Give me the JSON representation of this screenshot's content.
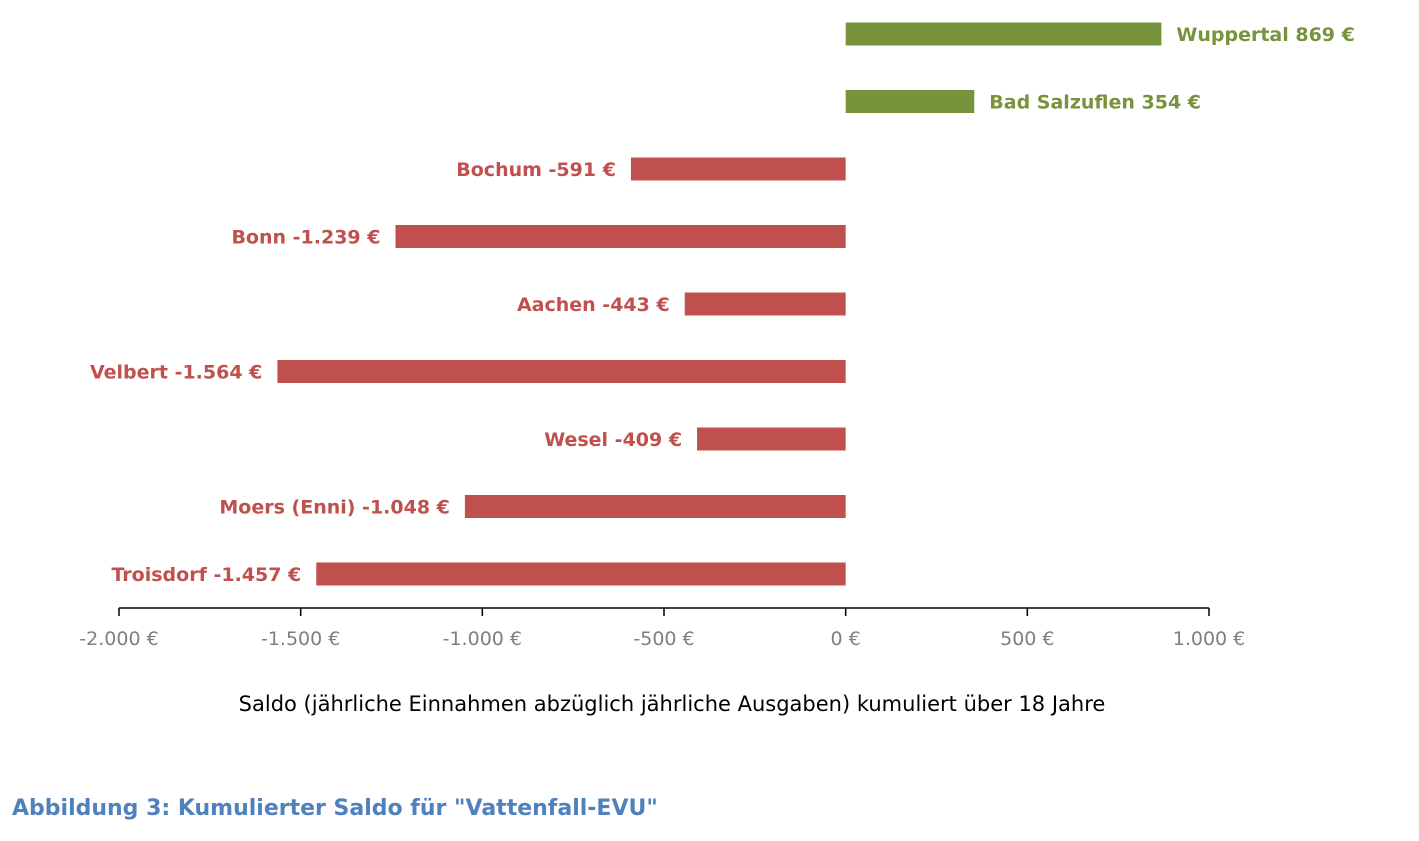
{
  "colors": {
    "positive": "#77933c",
    "negative": "#c0504d",
    "axis": "#000000",
    "tick_text": "#7f7f7f",
    "caption": "#4f81bd"
  },
  "chart_data": {
    "type": "bar",
    "orientation": "horizontal",
    "categories": [
      "Wuppertal",
      "Bad Salzuflen",
      "Bochum",
      "Bonn",
      "Aachen",
      "Velbert",
      "Wesel",
      "Moers (Enni)",
      "Troisdorf"
    ],
    "values": [
      869,
      354,
      -591,
      -1239,
      -443,
      -1564,
      -409,
      -1048,
      -1457
    ],
    "data_labels": [
      "Wuppertal  869 €",
      "Bad Salzuflen  354 €",
      "Bochum -591 €",
      "Bonn -1.239 €",
      "Aachen -443 €",
      "Velbert -1.564 €",
      "Wesel -409 €",
      "Moers (Enni) -1.048 €",
      "Troisdorf -1.457 €"
    ],
    "xlim": [
      -2000,
      1000
    ],
    "xticks": [
      -2000,
      -1500,
      -1000,
      -500,
      0,
      500,
      1000
    ],
    "xtick_labels": [
      "-2.000 €",
      "-1.500 €",
      "-1.000 €",
      "-500 €",
      "0 €",
      "500 €",
      "1.000 €"
    ],
    "xlabel": "Saldo (jährliche Einnahmen abzüglich jährliche Ausgaben) kumuliert über 18 Jahre",
    "ylabel": "",
    "grid": false,
    "legend": "none"
  },
  "caption": "Abbildung 3: Kumulierter Saldo für \"Vattenfall-EVU\""
}
